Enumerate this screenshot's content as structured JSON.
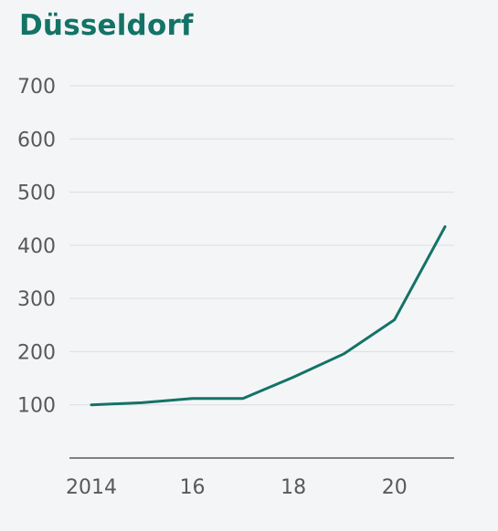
{
  "chart_data": {
    "type": "line",
    "title": "Düsseldorf",
    "xlabel": "",
    "ylabel": "",
    "x": [
      2014,
      2015,
      2016,
      2017,
      2018,
      2019,
      2020,
      2021
    ],
    "series": [
      {
        "values": [
          100,
          104,
          112,
          112,
          152,
          196,
          260,
          435
        ]
      }
    ],
    "xlim": [
      2014,
      2021
    ],
    "ylim": [
      0,
      700
    ],
    "x_ticks": [
      2014,
      2016,
      2018,
      2020
    ],
    "x_tick_labels": [
      "2014",
      "16",
      "18",
      "20"
    ],
    "y_ticks": [
      100,
      200,
      300,
      400,
      500,
      600,
      700
    ],
    "y_tick_labels": [
      "100",
      "200",
      "300",
      "400",
      "500",
      "600",
      "700"
    ],
    "grid": true,
    "colors": {
      "line": "#137366",
      "title": "#137366",
      "grid": "#dcdde0",
      "axis": "#5a5a5a",
      "text": "#58595b"
    }
  }
}
